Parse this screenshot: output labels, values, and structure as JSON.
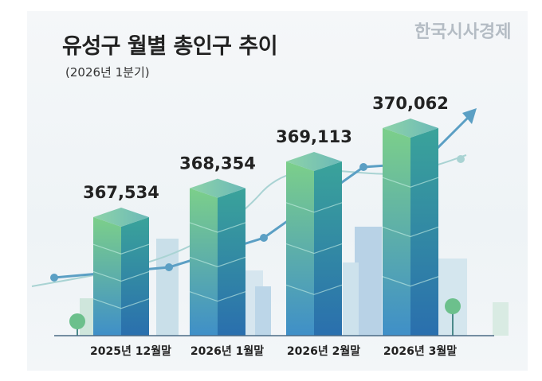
{
  "chart_data": {
    "type": "bar",
    "title": "유성구 월별 총인구 추이",
    "subtitle": "(2026년 1분기)",
    "categories": [
      "2025년 12월말",
      "2026년 1월말",
      "2026년 2월말",
      "2026년 3월말"
    ],
    "values": [
      367534,
      368354,
      369113,
      370062
    ],
    "value_labels": [
      "367,534",
      "368,354",
      "369,113",
      "370,062"
    ],
    "xlabel": "",
    "ylabel": "",
    "grid": false,
    "trend_arrow": true,
    "colors": {
      "bar_top": "#7cc9a8",
      "bar_left": "#6cc08c",
      "bar_right": "#2f7fb5",
      "trend": "#5b9fc4",
      "axis": "#4a6a84"
    }
  },
  "watermark": "한국시사경제"
}
